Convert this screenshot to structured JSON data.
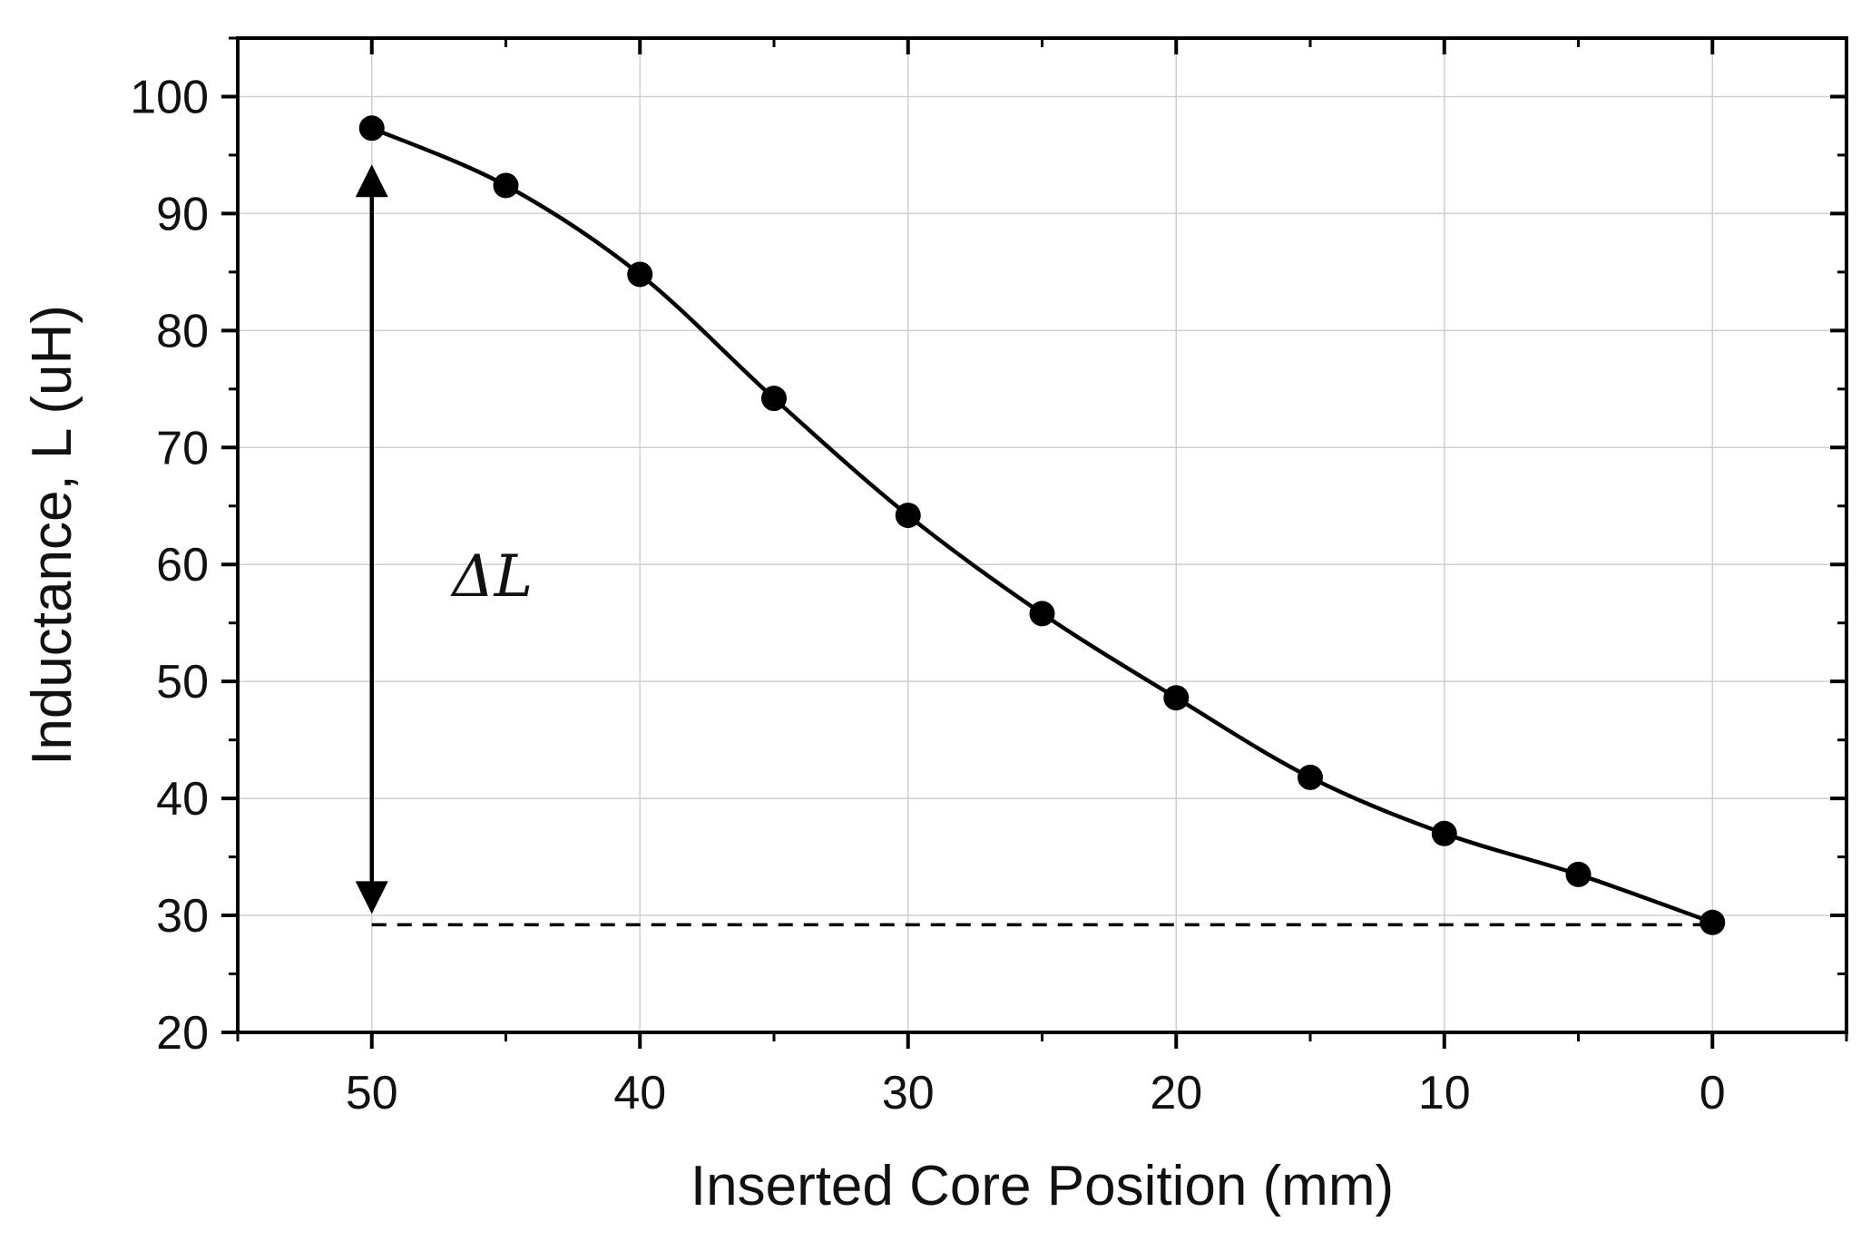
{
  "chart_data": {
    "type": "line",
    "title": "",
    "xlabel": "Inserted Core Position (mm)",
    "ylabel": "Inductance, L (uH)",
    "xlim": [
      55,
      -5
    ],
    "ylim": [
      20,
      105
    ],
    "x_reversed": true,
    "grid": true,
    "x_ticks": [
      50,
      40,
      30,
      20,
      10,
      0
    ],
    "y_ticks": [
      20,
      30,
      40,
      50,
      60,
      70,
      80,
      90,
      100
    ],
    "series": [
      {
        "name": "Inductance",
        "x": [
          50,
          45,
          40,
          35,
          30,
          25,
          20,
          15,
          10,
          5,
          0
        ],
        "values": [
          97.3,
          92.4,
          84.8,
          74.2,
          64.2,
          55.8,
          48.6,
          41.8,
          37.0,
          33.5,
          29.4
        ],
        "marker": "circle",
        "line": "smooth",
        "color": "#000000"
      }
    ],
    "annotations": [
      {
        "type": "hline_dashed",
        "y": 29.2,
        "x_from": 50,
        "x_to": 0
      },
      {
        "type": "double_arrow",
        "x": 50,
        "y_from": 29.2,
        "y_to": 97.3
      },
      {
        "type": "text",
        "text": "ΔL",
        "x": 47,
        "y": 59
      }
    ]
  }
}
